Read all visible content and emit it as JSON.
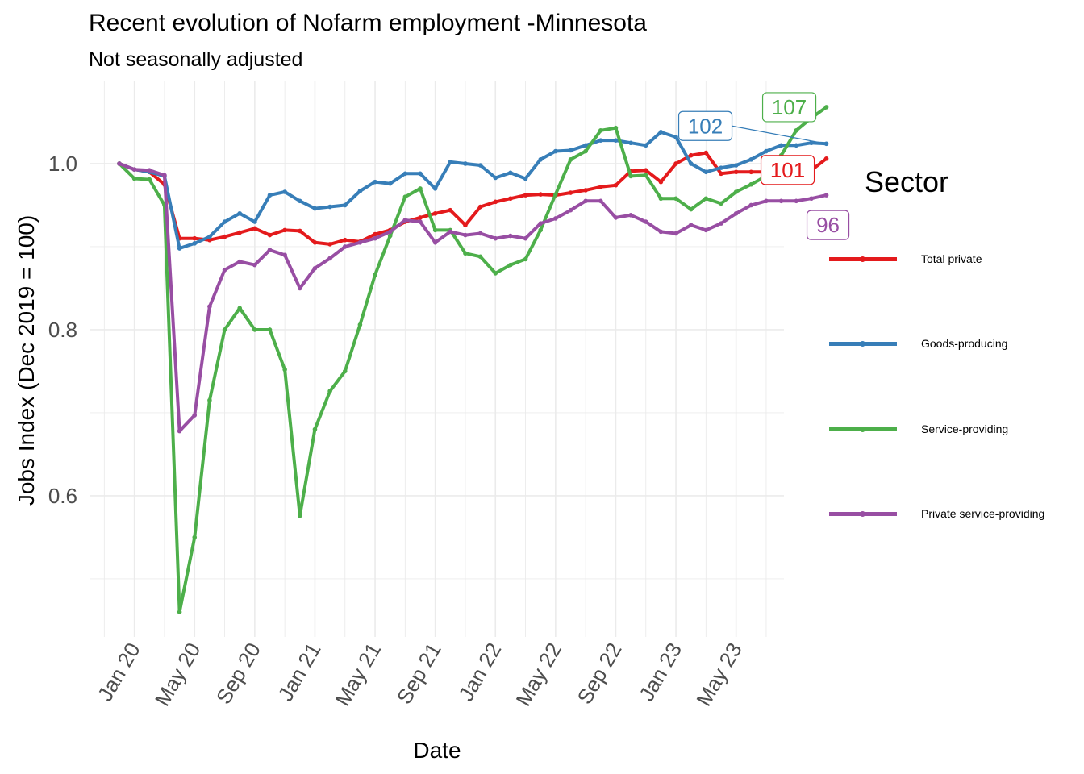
{
  "title": "Recent evolution of Nofarm employment -Minnesota",
  "subtitle": "Not seasonally adjusted",
  "legend": {
    "title": "Sector",
    "items": [
      {
        "label": "Total private",
        "color": "#E41A1C"
      },
      {
        "label": "Goods-producing",
        "color": "#377EB8"
      },
      {
        "label": "Service-providing",
        "color": "#4DAF4A"
      },
      {
        "label": "Private service-providing",
        "color": "#984EA3"
      }
    ]
  },
  "chart_data": {
    "type": "line",
    "xlabel": "Date",
    "ylabel": "Jobs Index (Dec 2019 = 100)",
    "x_start": "2019-12",
    "x_ticks": [
      "Jan 20",
      "May 20",
      "Sep 20",
      "Jan 21",
      "May 21",
      "Sep 21",
      "Jan 22",
      "May 22",
      "Sep 22",
      "Jan 23",
      "May 23"
    ],
    "x_tick_months": [
      "2020-01",
      "2020-05",
      "2020-09",
      "2021-01",
      "2021-05",
      "2021-09",
      "2022-01",
      "2022-05",
      "2022-09",
      "2023-01",
      "2023-05"
    ],
    "y_ticks": [
      0.6,
      0.8,
      1.0
    ],
    "ylim": [
      0.43,
      1.1
    ],
    "grid": true,
    "legend_position": "right",
    "series": [
      {
        "name": "Total private",
        "color": "#E41A1C",
        "end_label": "101",
        "values": [
          1.0,
          0.993,
          0.99,
          0.975,
          0.91,
          0.91,
          0.908,
          0.912,
          0.917,
          0.922,
          0.914,
          0.92,
          0.919,
          0.905,
          0.903,
          0.908,
          0.906,
          0.915,
          0.92,
          0.93,
          0.935,
          0.94,
          0.944,
          0.926,
          0.948,
          0.954,
          0.958,
          0.962,
          0.963,
          0.962,
          0.965,
          0.968,
          0.972,
          0.974,
          0.991,
          0.992,
          0.978,
          1.0,
          1.01,
          1.013,
          0.988,
          0.99,
          0.99,
          0.99,
          0.99,
          0.995,
          0.992,
          1.006
        ]
      },
      {
        "name": "Goods-producing",
        "color": "#377EB8",
        "end_label": "102",
        "values": [
          1.0,
          0.993,
          0.99,
          0.985,
          0.898,
          0.904,
          0.912,
          0.93,
          0.94,
          0.93,
          0.962,
          0.966,
          0.955,
          0.946,
          0.948,
          0.95,
          0.967,
          0.978,
          0.976,
          0.988,
          0.988,
          0.97,
          1.002,
          1.0,
          0.998,
          0.983,
          0.989,
          0.982,
          1.005,
          1.015,
          1.016,
          1.022,
          1.028,
          1.028,
          1.025,
          1.022,
          1.038,
          1.032,
          1.0,
          0.99,
          0.995,
          0.998,
          1.005,
          1.015,
          1.022,
          1.022,
          1.025,
          1.024
        ]
      },
      {
        "name": "Service-providing",
        "color": "#4DAF4A",
        "end_label": "107",
        "values": [
          1.0,
          0.982,
          0.981,
          0.95,
          0.46,
          0.55,
          0.715,
          0.8,
          0.826,
          0.8,
          0.8,
          0.752,
          0.576,
          0.68,
          0.726,
          0.75,
          0.806,
          0.866,
          0.913,
          0.96,
          0.97,
          0.92,
          0.92,
          0.892,
          0.888,
          0.868,
          0.878,
          0.885,
          0.92,
          0.963,
          1.005,
          1.015,
          1.04,
          1.043,
          0.985,
          0.986,
          0.958,
          0.958,
          0.945,
          0.958,
          0.952,
          0.966,
          0.975,
          0.985,
          1.01,
          1.04,
          1.055,
          1.068
        ]
      },
      {
        "name": "Private service-providing",
        "color": "#984EA3",
        "end_label": "96",
        "values": [
          1.0,
          0.993,
          0.992,
          0.986,
          0.678,
          0.697,
          0.828,
          0.872,
          0.882,
          0.878,
          0.896,
          0.89,
          0.85,
          0.874,
          0.886,
          0.9,
          0.905,
          0.91,
          0.918,
          0.932,
          0.93,
          0.905,
          0.918,
          0.914,
          0.916,
          0.91,
          0.913,
          0.91,
          0.928,
          0.934,
          0.944,
          0.955,
          0.955,
          0.935,
          0.938,
          0.93,
          0.918,
          0.916,
          0.926,
          0.92,
          0.928,
          0.94,
          0.95,
          0.955,
          0.955,
          0.955,
          0.958,
          0.962
        ]
      }
    ]
  }
}
